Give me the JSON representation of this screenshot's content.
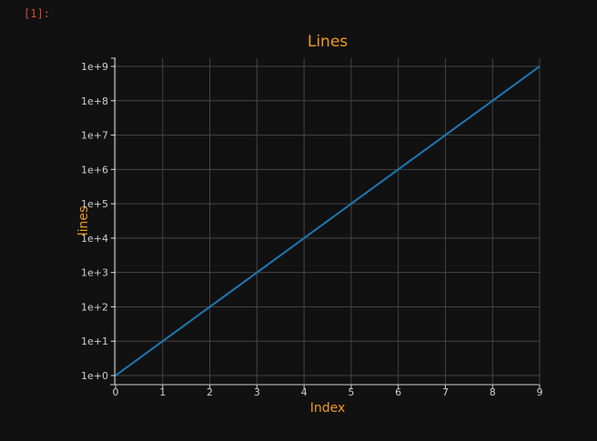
{
  "cell": {
    "prompt": "[1]:"
  },
  "colors": {
    "background": "#111111",
    "accent_text": "#f19a1e",
    "prompt": "#d84a2e",
    "series_line": "#1f77b4",
    "grid": "#444444"
  },
  "chart_data": {
    "type": "line",
    "title": "Lines",
    "xlabel": "Index",
    "ylabel": "lines",
    "x": [
      0,
      1,
      2,
      3,
      4,
      5,
      6,
      7,
      8,
      9
    ],
    "series": [
      {
        "values": [
          1,
          10,
          100,
          1000,
          10000,
          100000,
          1000000,
          10000000,
          100000000,
          1000000000
        ]
      }
    ],
    "xlim": [
      0,
      9
    ],
    "ylim": [
      1,
      1000000000
    ],
    "yscale": "log",
    "x_ticks": [
      "0",
      "1",
      "2",
      "3",
      "4",
      "5",
      "6",
      "7",
      "8",
      "9"
    ],
    "y_ticks": [
      "1e+0",
      "1e+1",
      "1e+2",
      "1e+3",
      "1e+4",
      "1e+5",
      "1e+6",
      "1e+7",
      "1e+8",
      "1e+9"
    ],
    "grid": true,
    "legend": "none"
  }
}
